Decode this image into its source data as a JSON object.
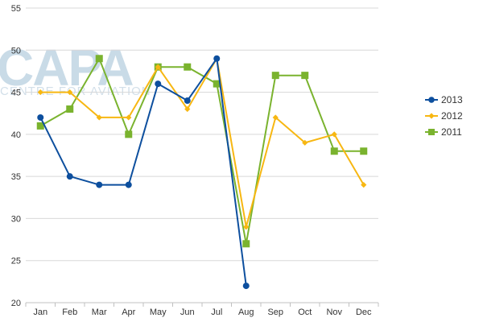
{
  "watermark": {
    "big": "CAPA",
    "small": "CENTRE FOR AVIATION"
  },
  "chart_data": {
    "type": "line",
    "categories": [
      "Jan",
      "Feb",
      "Mar",
      "Apr",
      "May",
      "Jun",
      "Jul",
      "Aug",
      "Sep",
      "Oct",
      "Nov",
      "Dec"
    ],
    "ylim": [
      20,
      55
    ],
    "yticks": [
      20,
      25,
      30,
      35,
      40,
      45,
      50,
      55
    ],
    "grid": "horizontal",
    "legend_position": "right",
    "series": [
      {
        "name": "2013",
        "color": "#0d4f9e",
        "marker": "circle",
        "values": [
          42,
          35,
          34,
          34,
          46,
          44,
          49,
          22,
          null,
          null,
          null,
          null
        ]
      },
      {
        "name": "2012",
        "color": "#f7b712",
        "marker": "diamond",
        "values": [
          45,
          45,
          42,
          42,
          48,
          43,
          49,
          29,
          42,
          39,
          40,
          34
        ]
      },
      {
        "name": "2011",
        "color": "#7ab32e",
        "marker": "square",
        "values": [
          41,
          43,
          49,
          40,
          48,
          48,
          46,
          27,
          47,
          47,
          38,
          38
        ]
      }
    ]
  }
}
